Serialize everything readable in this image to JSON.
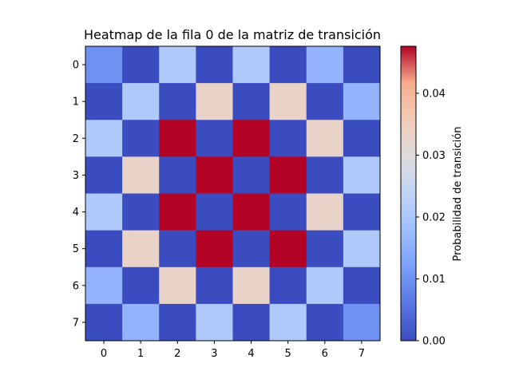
{
  "chart_data": {
    "type": "heatmap",
    "title": "Heatmap de la fila 0 de la matriz de transición",
    "xlabel": "",
    "ylabel": "",
    "x_categories": [
      "0",
      "1",
      "2",
      "3",
      "4",
      "5",
      "6",
      "7"
    ],
    "y_categories": [
      "0",
      "1",
      "2",
      "3",
      "4",
      "5",
      "6",
      "7"
    ],
    "values": [
      [
        0.0098,
        0.0,
        0.0208,
        0.0,
        0.0208,
        0.0,
        0.016,
        0.0
      ],
      [
        0.0,
        0.0208,
        0.0,
        0.0332,
        0.0,
        0.0332,
        0.0,
        0.016
      ],
      [
        0.0208,
        0.0,
        0.0476,
        0.0,
        0.0476,
        0.0,
        0.0332,
        0.0
      ],
      [
        0.0,
        0.0332,
        0.0,
        0.0476,
        0.0,
        0.0476,
        0.0,
        0.0208
      ],
      [
        0.0208,
        0.0,
        0.0476,
        0.0,
        0.0476,
        0.0,
        0.0332,
        0.0
      ],
      [
        0.0,
        0.0332,
        0.0,
        0.0476,
        0.0,
        0.0476,
        0.0,
        0.0208
      ],
      [
        0.016,
        0.0,
        0.0332,
        0.0,
        0.0332,
        0.0,
        0.0208,
        0.0
      ],
      [
        0.0,
        0.016,
        0.0,
        0.0208,
        0.0,
        0.0208,
        0.0,
        0.0098
      ]
    ],
    "colormap": "coolwarm",
    "vmin": 0.0,
    "vmax": 0.0476,
    "colorbar": {
      "label": "Probabilidad de transición",
      "ticks": [
        0.0,
        0.01,
        0.02,
        0.03,
        0.04
      ],
      "tick_labels": [
        "0.00",
        "0.01",
        "0.02",
        "0.03",
        "0.04"
      ]
    }
  }
}
